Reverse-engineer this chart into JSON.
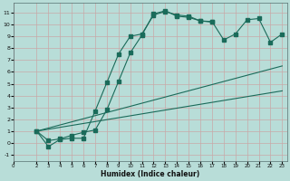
{
  "xlabel": "Humidex (Indice chaleur)",
  "background_color": "#b8ddd8",
  "grid_color": "#c8a8a8",
  "line_color": "#1a6b5a",
  "xlim": [
    0,
    23.4
  ],
  "ylim": [
    -1.5,
    11.8
  ],
  "yticks": [
    -1,
    0,
    1,
    2,
    3,
    4,
    5,
    6,
    7,
    8,
    9,
    10,
    11
  ],
  "xticks": [
    0,
    2,
    3,
    4,
    5,
    6,
    7,
    8,
    9,
    10,
    11,
    12,
    13,
    14,
    15,
    16,
    17,
    18,
    19,
    20,
    21,
    22,
    23
  ],
  "curve1_x": [
    2,
    3,
    4,
    5,
    6,
    7,
    8,
    9,
    10,
    11,
    12,
    13,
    14,
    15,
    16,
    17
  ],
  "curve1_y": [
    1.0,
    -0.3,
    0.3,
    0.4,
    0.4,
    2.7,
    5.1,
    7.5,
    9.0,
    9.2,
    10.8,
    11.1,
    10.8,
    10.7,
    10.3,
    10.2
  ],
  "curve2_x": [
    2,
    3,
    4,
    5,
    6,
    7,
    8,
    9,
    10,
    11,
    12,
    13,
    14,
    15,
    16,
    17,
    18,
    19,
    20,
    21,
    22,
    23
  ],
  "curve2_y": [
    1.0,
    0.2,
    0.35,
    0.65,
    0.9,
    1.1,
    2.8,
    5.2,
    7.6,
    9.1,
    10.9,
    11.15,
    10.7,
    10.6,
    10.3,
    10.25,
    8.7,
    9.2,
    10.4,
    10.5,
    8.5,
    9.2
  ],
  "line1_x": [
    2,
    23
  ],
  "line1_y": [
    1.0,
    6.5
  ],
  "line2_x": [
    2,
    23
  ],
  "line2_y": [
    1.0,
    4.4
  ]
}
